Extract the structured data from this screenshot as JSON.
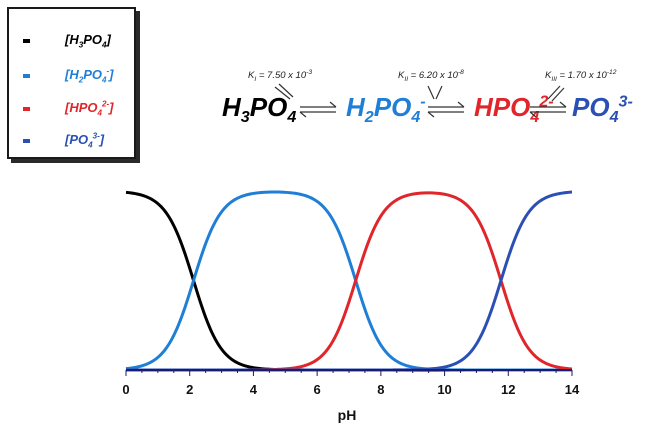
{
  "legend": {
    "items": [
      {
        "base": "[H",
        "sub1": "3",
        "mid": "PO",
        "sub2": "4",
        "sup": "",
        "end": "]",
        "color": "#000000"
      },
      {
        "base": "[H",
        "sub1": "2",
        "mid": "PO",
        "sub2": "4",
        "sup": "-",
        "end": "]",
        "color": "#1f7fd6"
      },
      {
        "base": "[HPO",
        "sub1": "",
        "mid": "",
        "sub2": "4",
        "sup": "2-",
        "end": "]",
        "color": "#e0262b"
      },
      {
        "base": "[PO",
        "sub1": "",
        "mid": "",
        "sub2": "4",
        "sup": "3-",
        "end": "]",
        "color": "#2a4fb5"
      }
    ]
  },
  "equilibrium": {
    "species": [
      {
        "a": "H",
        "sa": "3",
        "b": "PO",
        "sb": "4",
        "sup": "",
        "color": "#000000"
      },
      {
        "a": "H",
        "sa": "2",
        "b": "PO",
        "sb": "4",
        "sup": "-",
        "color": "#1f7fd6"
      },
      {
        "a": "HPO",
        "sa": "",
        "b": "",
        "sb": "4",
        "sup": "2-",
        "color": "#e0262b"
      },
      {
        "a": "PO",
        "sa": "",
        "b": "",
        "sb": "4",
        "sup": "3-",
        "color": "#2a4fb5"
      }
    ],
    "constants": [
      {
        "k": "K",
        "sub": "I",
        "mid": " = 7.50 x 10",
        "exp": "-3"
      },
      {
        "k": "K",
        "sub": "II",
        "mid": " = 6.20 x 10",
        "exp": "-8"
      },
      {
        "k": "K",
        "sub": "III",
        "mid": " = 1.70 x 10",
        "exp": "-12"
      }
    ]
  },
  "chart_data": {
    "type": "line",
    "xlabel": "pH",
    "xlim": [
      0,
      14
    ],
    "ylim": [
      0,
      1
    ],
    "x_ticks": [
      "0",
      "2",
      "4",
      "6",
      "8",
      "10",
      "12",
      "14"
    ],
    "pKa": [
      2.12,
      7.21,
      11.77
    ],
    "series": [
      {
        "name": "[H3PO4]",
        "color": "#000000"
      },
      {
        "name": "[H2PO4-]",
        "color": "#1f7fd6"
      },
      {
        "name": "[HPO4 2-]",
        "color": "#e0262b"
      },
      {
        "name": "[PO4 3-]",
        "color": "#2a4fb5"
      }
    ],
    "grid": false,
    "legend_position": "top-left"
  }
}
